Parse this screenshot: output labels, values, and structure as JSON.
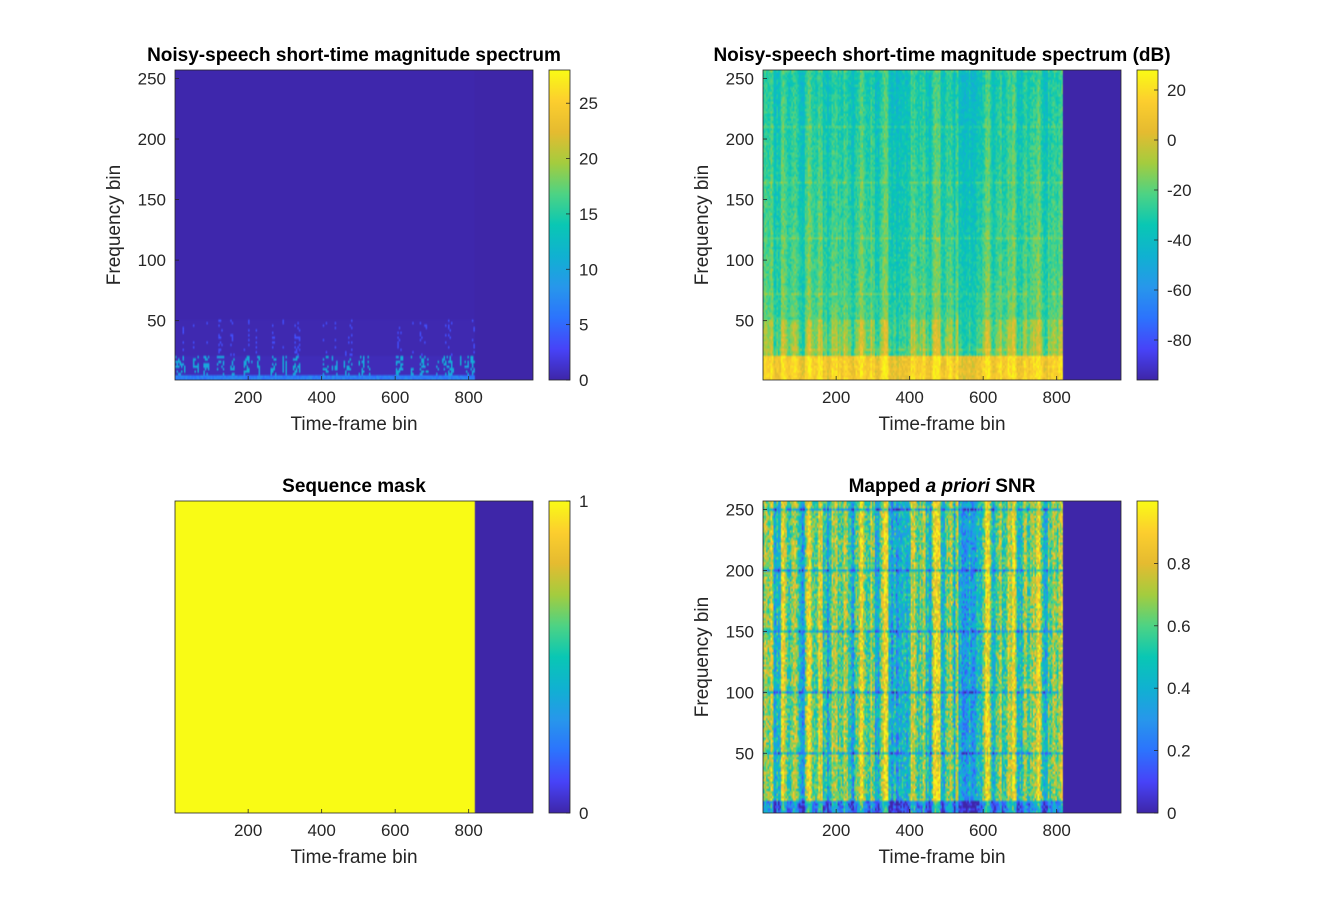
{
  "parula": [
    "#3e26a8",
    "#4743f8",
    "#2c73fd",
    "#2797eb",
    "#10b1d1",
    "#09c7b4",
    "#4dd384",
    "#a4cc3e",
    "#e5bb30",
    "#fcce2e",
    "#f9fb15"
  ],
  "chart_data": [
    {
      "type": "heatmap",
      "title": "Noisy-speech short-time magnitude spectrum",
      "xlabel": "Time-frame bin",
      "ylabel": "Frequency bin",
      "xlim": [
        1,
        975
      ],
      "ylim": [
        1,
        257
      ],
      "xticks": [
        200,
        400,
        600,
        800
      ],
      "yticks": [
        50,
        100,
        150,
        200,
        250
      ],
      "colorbar": {
        "range": [
          0,
          28
        ],
        "ticks": [
          0,
          5,
          10,
          15,
          20,
          25
        ]
      },
      "valid_frames": 815,
      "style": "magnitude"
    },
    {
      "type": "heatmap",
      "title": "Noisy-speech short-time magnitude spectrum (dB)",
      "xlabel": "Time-frame bin",
      "ylabel": "Frequency bin",
      "xlim": [
        1,
        975
      ],
      "ylim": [
        1,
        257
      ],
      "xticks": [
        200,
        400,
        600,
        800
      ],
      "yticks": [
        50,
        100,
        150,
        200,
        250
      ],
      "colorbar": {
        "range": [
          -96,
          28
        ],
        "ticks": [
          -80,
          -60,
          -40,
          -20,
          0,
          20
        ]
      },
      "valid_frames": 815,
      "style": "db"
    },
    {
      "type": "heatmap",
      "title": "Sequence mask",
      "xlabel": "Time-frame bin",
      "ylabel": "",
      "xlim": [
        1,
        975
      ],
      "ylim": [
        1,
        257
      ],
      "xticks": [
        200,
        400,
        600,
        800
      ],
      "yticks": [],
      "colorbar": {
        "range": [
          0,
          1
        ],
        "ticks": [
          0,
          1
        ]
      },
      "valid_frames": 815,
      "style": "mask"
    },
    {
      "type": "heatmap",
      "title_parts": [
        "Mapped ",
        "a priori",
        " SNR"
      ],
      "xlabel": "Time-frame bin",
      "ylabel": "Frequency bin",
      "xlim": [
        1,
        975
      ],
      "ylim": [
        1,
        257
      ],
      "xticks": [
        200,
        400,
        600,
        800
      ],
      "yticks": [
        50,
        100,
        150,
        200,
        250
      ],
      "colorbar": {
        "range": [
          0,
          1
        ],
        "ticks": [
          0,
          0.2,
          0.4,
          0.6,
          0.8
        ]
      },
      "valid_frames": 815,
      "style": "snr"
    }
  ]
}
